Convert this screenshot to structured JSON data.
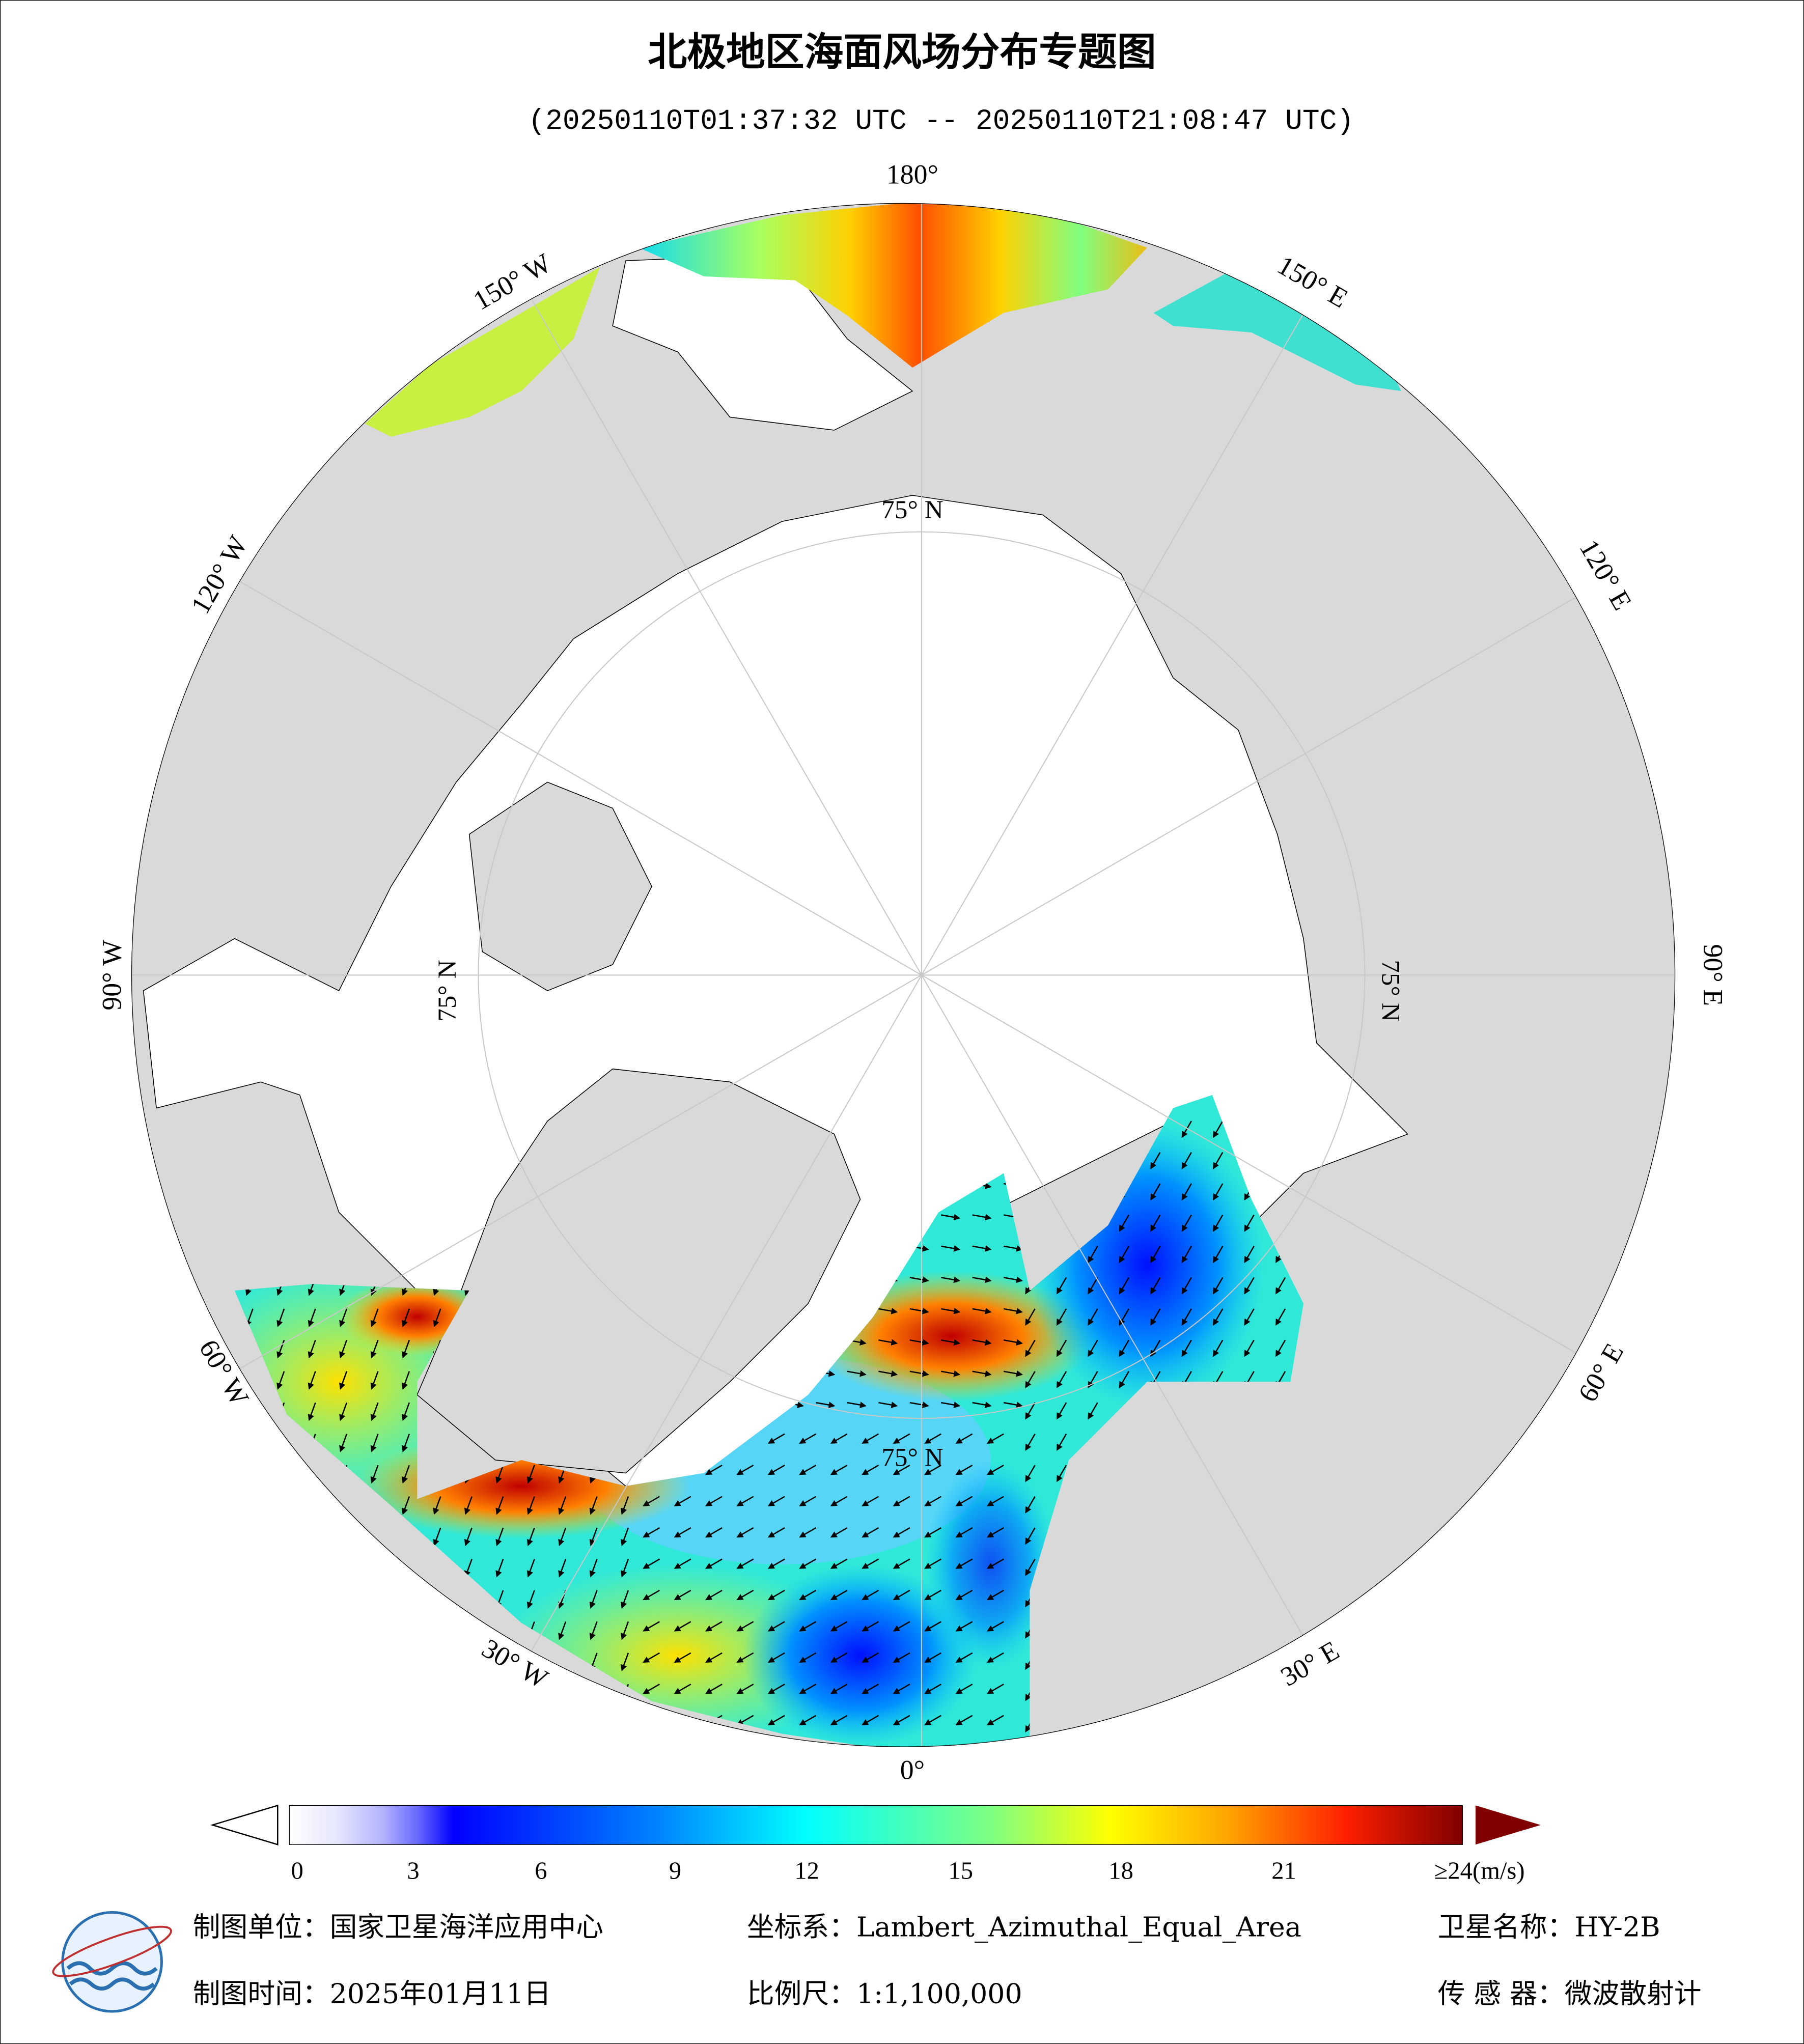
{
  "header": {
    "title": "北极地区海面风场分布专题图",
    "subtitle": "(20250110T01:37:32 UTC -- 20250110T21:08:47 UTC)"
  },
  "map": {
    "longitude_labels": [
      "180°",
      "150° E",
      "120° E",
      "90° E",
      "60° E",
      "30° E",
      "0°",
      "30° W",
      "60° W",
      "90° W",
      "120° W",
      "150° W"
    ],
    "latitude_labels": [
      "75° N",
      "75° N",
      "75° N",
      "75° N"
    ]
  },
  "colorbar": {
    "labels": [
      "0",
      "3",
      "6",
      "9",
      "12",
      "15",
      "18",
      "21",
      "≥24(m/s)"
    ]
  },
  "footer": {
    "unit": "制图单位：国家卫星海洋应用中心",
    "coordinate": "坐标系：Lambert_Azimuthal_Equal_Area",
    "satellite": "卫星名称：HY-2B",
    "time": "制图时间：2025年01月11日",
    "scale": "比例尺：1:1,100,000",
    "sensor": "传 感 器：微波散射计"
  }
}
